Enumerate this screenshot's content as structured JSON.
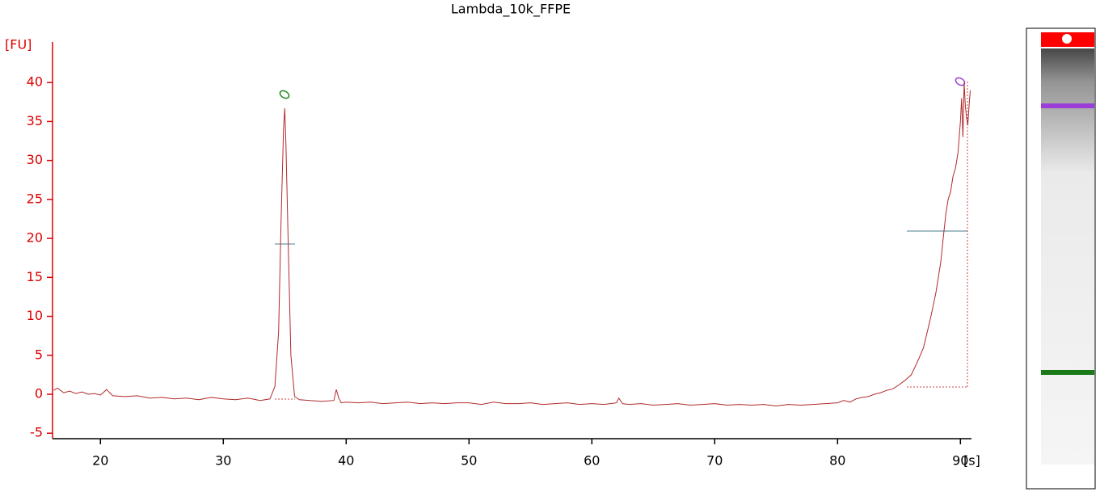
{
  "chart_data": {
    "type": "line",
    "title": "Lambda_10k_FFPE",
    "y_label": "[FU]",
    "x_label": "[s]",
    "color": "#b22a2a",
    "axis_color": "#dd0000",
    "xlim": [
      16.1,
      90.9
    ],
    "ylim": [
      -5.7,
      45.2
    ],
    "xticks": [
      20,
      30,
      40,
      50,
      60,
      70,
      80,
      90
    ],
    "yticks": [
      -5,
      0,
      5,
      10,
      15,
      20,
      25,
      30,
      35,
      40
    ],
    "x": [
      16.2,
      16.5,
      17,
      17.5,
      18,
      18.5,
      19,
      19.5,
      20,
      20.5,
      21,
      22,
      23,
      24,
      25,
      26,
      27,
      28,
      29,
      30,
      31,
      32,
      33,
      33.8,
      34.2,
      34.5,
      34.7,
      34.9,
      35.0,
      35.1,
      35.3,
      35.5,
      35.8,
      36.2,
      37,
      38,
      39,
      39.2,
      39.4,
      39.6,
      40,
      41,
      42,
      43,
      44,
      45,
      46,
      47,
      48,
      49,
      50,
      51,
      52,
      53,
      54,
      55,
      56,
      57,
      58,
      59,
      60,
      61,
      62,
      62.2,
      62.5,
      63,
      64,
      65,
      66,
      67,
      68,
      69,
      70,
      71,
      72,
      73,
      74,
      75,
      76,
      77,
      78,
      79,
      80,
      80.5,
      81,
      81.5,
      82,
      82.5,
      83,
      83.5,
      84,
      84.5,
      85,
      85.5,
      86,
      86.3,
      86.6,
      87,
      87.3,
      87.6,
      88,
      88.2,
      88.4,
      88.6,
      88.8,
      89,
      89.2,
      89.4,
      89.6,
      89.8,
      90,
      90.1,
      90.2,
      90.3,
      90.4,
      90.5,
      90.6,
      90.7,
      90.8
    ],
    "values": [
      0.5,
      0.8,
      0.2,
      0.4,
      0.1,
      0.3,
      0.0,
      0.1,
      -0.1,
      0.6,
      -0.2,
      -0.3,
      -0.2,
      -0.5,
      -0.4,
      -0.6,
      -0.5,
      -0.7,
      -0.4,
      -0.6,
      -0.7,
      -0.5,
      -0.8,
      -0.6,
      1,
      8,
      22,
      34,
      36.7,
      32,
      18,
      5,
      -0.3,
      -0.7,
      -0.8,
      -0.9,
      -0.8,
      0.6,
      -0.5,
      -1.1,
      -1.0,
      -1.1,
      -1.0,
      -1.2,
      -1.1,
      -1.0,
      -1.2,
      -1.1,
      -1.2,
      -1.1,
      -1.1,
      -1.3,
      -1.0,
      -1.2,
      -1.2,
      -1.1,
      -1.3,
      -1.2,
      -1.1,
      -1.3,
      -1.2,
      -1.3,
      -1.1,
      -0.5,
      -1.2,
      -1.3,
      -1.2,
      -1.4,
      -1.3,
      -1.2,
      -1.4,
      -1.3,
      -1.2,
      -1.4,
      -1.3,
      -1.4,
      -1.3,
      -1.5,
      -1.3,
      -1.4,
      -1.3,
      -1.2,
      -1.1,
      -0.8,
      -1.0,
      -0.6,
      -0.4,
      -0.3,
      0.0,
      0.2,
      0.5,
      0.7,
      1.2,
      1.8,
      2.5,
      3.5,
      4.5,
      6,
      8,
      10,
      13,
      15,
      17,
      20,
      23,
      25,
      26,
      28,
      29,
      31,
      35,
      38,
      33,
      40,
      37,
      35.5,
      34.5,
      37,
      39
    ]
  }
}
